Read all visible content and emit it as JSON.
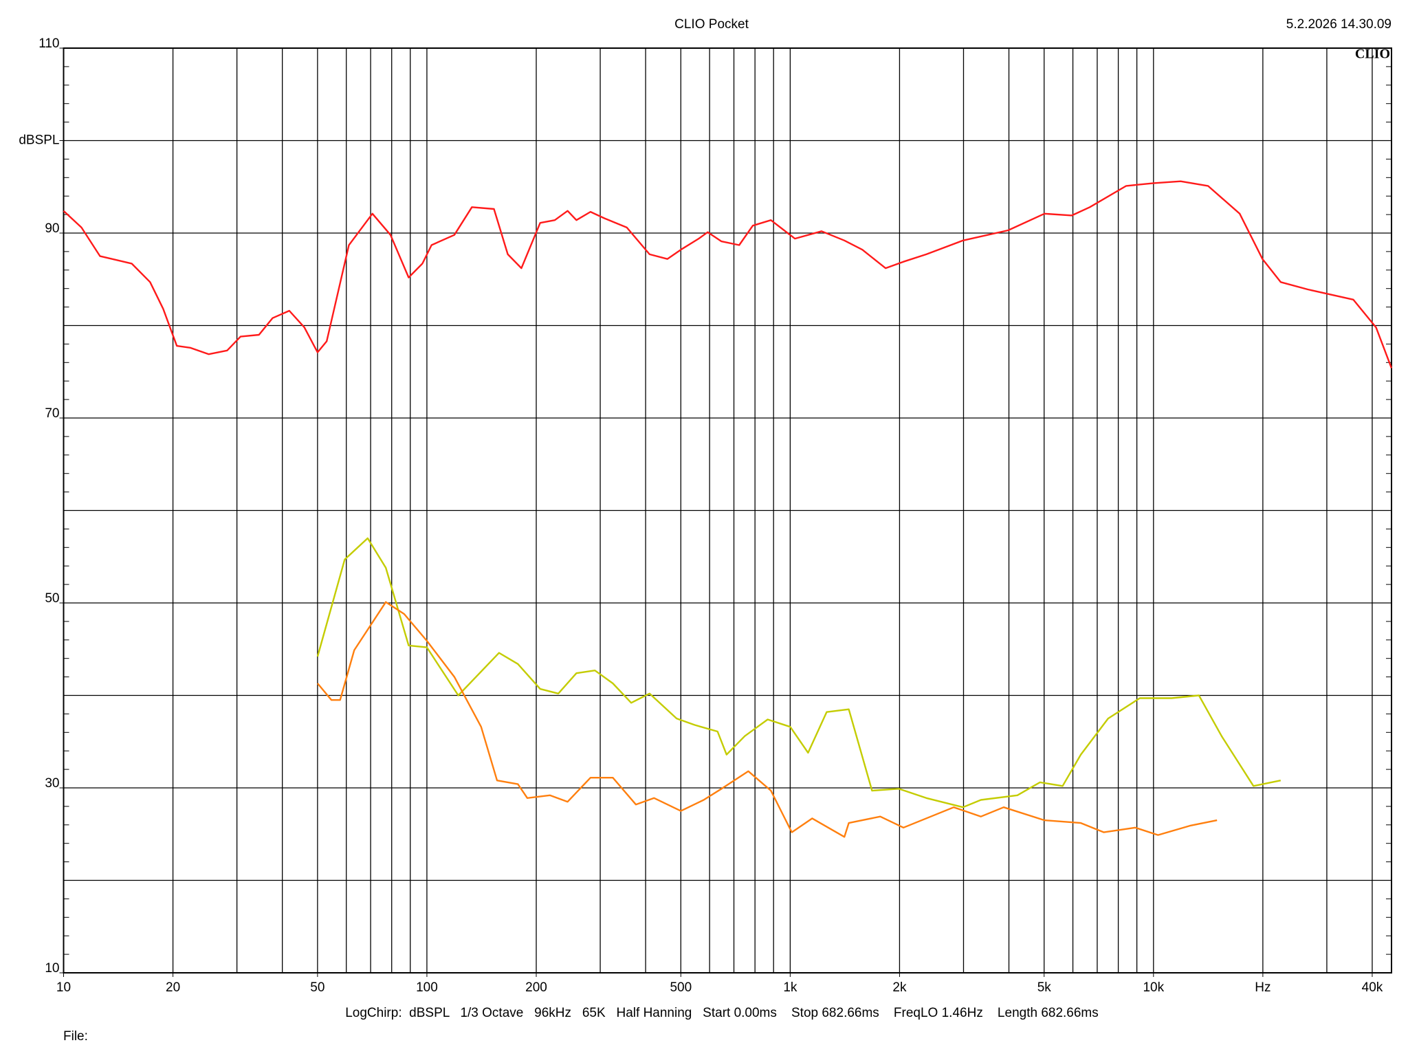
{
  "chart_data": {
    "type": "line",
    "title": "CLIO Pocket",
    "timestamp": "5.2.2026 14.30.09",
    "logo": "CLIO",
    "footer": "LogChirp:  dBSPL   1/3 Octave   96kHz   65K   Half Hanning   Start 0.00ms    Stop 682.66ms    FreqLO 1.46Hz    Length 682.66ms",
    "file_label": "File:",
    "log_x": true,
    "grid": true,
    "xlim": [
      10,
      45200
    ],
    "ylim": [
      10,
      110
    ],
    "xticks": [
      10,
      20,
      50,
      100,
      200,
      500,
      {
        "value": 1000,
        "label": "1k"
      },
      {
        "value": 2000,
        "label": "2k"
      },
      {
        "value": 5000,
        "label": "5k"
      },
      {
        "value": 10000,
        "label": "10k"
      },
      {
        "value": 20000,
        "label": "Hz"
      },
      {
        "value": 40000,
        "label": "40k"
      }
    ],
    "yticks": [
      10,
      30,
      50,
      70,
      90,
      {
        "value": 100,
        "label": "dBSPL"
      },
      110
    ],
    "xgrid": [
      20,
      30,
      40,
      50,
      60,
      70,
      80,
      90,
      100,
      200,
      300,
      400,
      500,
      600,
      700,
      800,
      900,
      1000,
      2000,
      3000,
      4000,
      5000,
      6000,
      7000,
      8000,
      9000,
      10000,
      20000,
      30000,
      40000
    ],
    "ygrid": [
      20,
      30,
      40,
      50,
      60,
      70,
      80,
      90,
      100
    ],
    "series": [
      {
        "color": "#ff1a1a",
        "x": [
          10,
          11.2,
          12.6,
          15.4,
          17.3,
          18.8,
          20.5,
          22.3,
          25.1,
          28.2,
          30.7,
          34.5,
          37.6,
          41.8,
          46,
          50,
          53,
          61,
          70.8,
          79.4,
          89.1,
          97.2,
          103,
          119,
          133,
          153,
          167,
          182,
          205,
          225,
          244,
          258,
          282,
          308,
          355,
          410,
          459,
          500,
          560,
          593,
          647,
          724,
          789,
          885,
          1030,
          1220,
          1410,
          1580,
          1830,
          2050,
          2370,
          2990,
          3980,
          5010,
          5960,
          6680,
          8410,
          10000,
          11880,
          14130,
          17270,
          19950,
          22390,
          26600,
          35480,
          40970,
          45200
        ],
        "values": [
          92.4,
          90.6,
          87.5,
          86.7,
          84.7,
          81.8,
          77.8,
          77.6,
          76.9,
          77.3,
          78.8,
          79,
          80.8,
          81.6,
          79.8,
          77.1,
          78.3,
          88.7,
          92.1,
          89.8,
          85.2,
          86.7,
          88.7,
          89.8,
          92.8,
          92.6,
          87.7,
          86.2,
          91.1,
          91.4,
          92.4,
          91.4,
          92.3,
          91.6,
          90.6,
          87.7,
          87.2,
          88.2,
          89.4,
          90.1,
          89.1,
          88.7,
          90.8,
          91.4,
          89.4,
          90.2,
          89.2,
          88.2,
          86.2,
          86.9,
          87.7,
          89.2,
          90.3,
          92.1,
          91.9,
          92.8,
          95.1,
          95.4,
          95.6,
          95.1,
          92.1,
          87.2,
          84.7,
          83.9,
          82.8,
          79.8,
          75.4
        ]
      },
      {
        "color": "#c4cc00",
        "x": [
          50,
          59.4,
          68.7,
          77.1,
          89.1,
          100,
          122,
          158,
          178,
          205,
          230,
          258,
          290,
          325,
          365,
          410,
          487,
          546,
          631,
          668,
          750,
          867,
          1000,
          1120,
          1260,
          1450,
          1680,
          1990,
          2370,
          2990,
          3350,
          4220,
          4870,
          5620,
          6310,
          7500,
          9170,
          11220,
          13340,
          15400,
          18840,
          22390
        ],
        "values": [
          44.2,
          54.7,
          57,
          53.8,
          45.4,
          45.2,
          40,
          44.6,
          43.4,
          40.7,
          40.2,
          42.4,
          42.7,
          41.3,
          39.2,
          40.2,
          37.5,
          36.8,
          36.1,
          33.6,
          35.6,
          37.4,
          36.6,
          33.8,
          38.2,
          38.5,
          29.7,
          29.9,
          28.9,
          27.9,
          28.7,
          29.2,
          30.6,
          30.2,
          33.6,
          37.5,
          39.7,
          39.7,
          40,
          35.6,
          30.2,
          30.8
        ]
      },
      {
        "color": "#ff7f0e",
        "x": [
          50,
          54.6,
          57.7,
          63.1,
          77.1,
          86.6,
          100,
          119,
          141,
          156,
          178,
          189,
          218,
          244,
          282,
          325,
          376,
          422,
          500,
          578,
          647,
          767,
          885,
          1010,
          1150,
          1410,
          1450,
          1770,
          2050,
          2820,
          3350,
          3870,
          5010,
          6310,
          7300,
          8910,
          10290,
          12590,
          14960
        ],
        "values": [
          41.3,
          39.5,
          39.5,
          44.9,
          50.1,
          48.8,
          45.9,
          42,
          36.6,
          30.8,
          30.4,
          28.9,
          29.2,
          28.5,
          31.1,
          31.1,
          28.2,
          28.9,
          27.5,
          28.7,
          29.9,
          31.8,
          29.7,
          25.2,
          26.7,
          24.7,
          26.2,
          26.9,
          25.7,
          27.9,
          26.9,
          27.9,
          26.5,
          26.2,
          25.2,
          25.7,
          24.9,
          25.9,
          26.5
        ]
      }
    ]
  }
}
